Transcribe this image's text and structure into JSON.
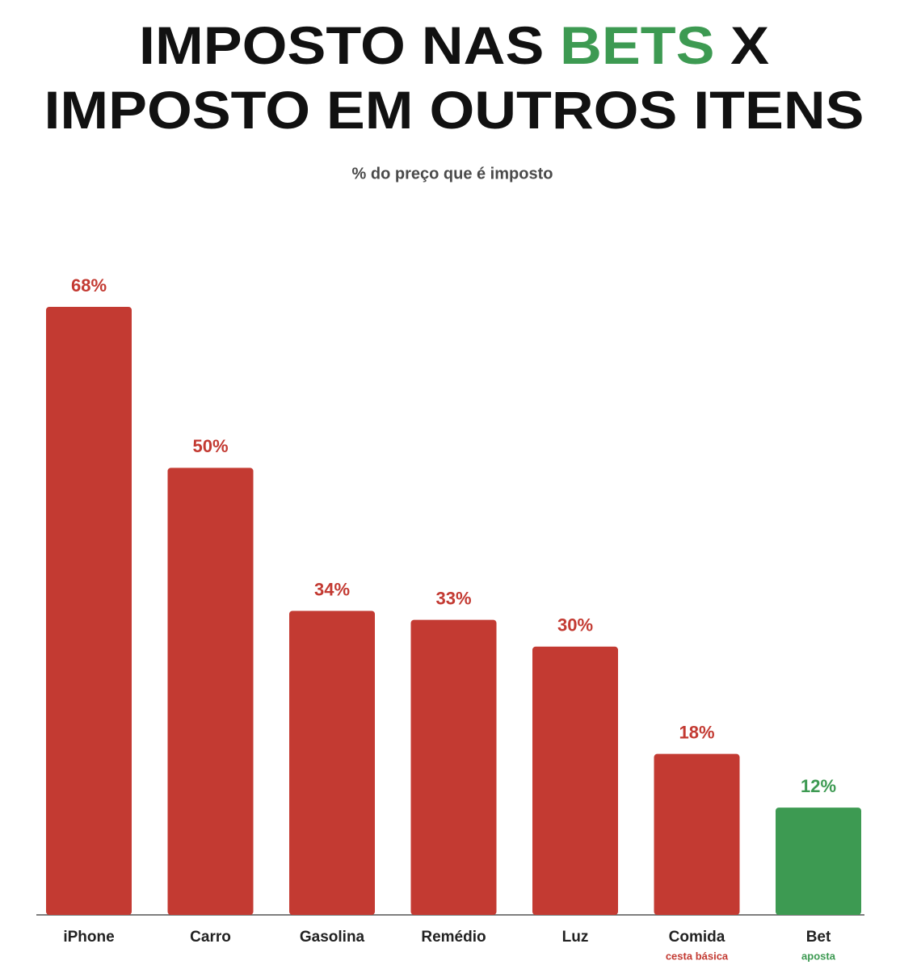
{
  "chart_data": {
    "type": "bar",
    "title_lines": [
      [
        {
          "text": "IMPOSTO NAS",
          "color": "#111111"
        },
        {
          "text": "BETS",
          "color": "#3d9a52"
        },
        {
          "text": "X",
          "color": "#111111"
        }
      ],
      [
        {
          "text": "IMPOSTO EM OUTROS ITENS",
          "color": "#111111"
        }
      ]
    ],
    "subtitle": "% do preço que é imposto",
    "categories": [
      "iPhone",
      "Carro",
      "Gasolina",
      "Remédio",
      "Luz",
      "Comida",
      "Bet"
    ],
    "sublabels": [
      null,
      null,
      null,
      null,
      null,
      "cesta básica",
      "aposta"
    ],
    "values": [
      68,
      50,
      34,
      33,
      30,
      18,
      12
    ],
    "value_labels": [
      "68%",
      "50%",
      "34%",
      "33%",
      "30%",
      "18%",
      "12%"
    ],
    "colors": [
      "#c33a32",
      "#c33a32",
      "#c33a32",
      "#c33a32",
      "#c33a32",
      "#c33a32",
      "#3d9a52"
    ]
  }
}
